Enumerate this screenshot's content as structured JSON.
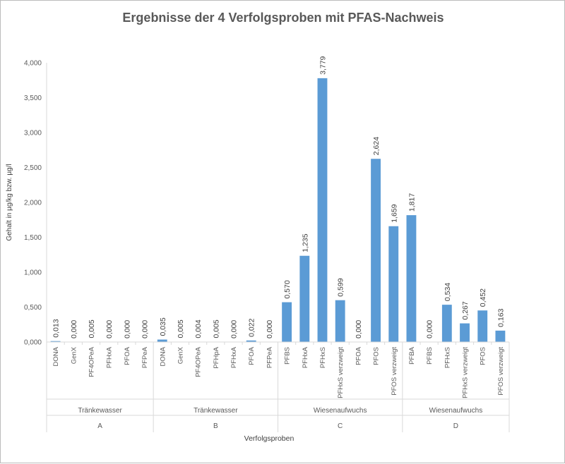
{
  "chart_data": {
    "type": "bar",
    "title": "Ergebnisse der 4 Verfolgsproben mit PFAS-Nachweis",
    "xlabel": "Verfolgsproben",
    "ylabel": "Gehalt in µg/kg bzw. µg/l",
    "ylim": [
      0,
      4.0
    ],
    "ytick_labels": [
      "0,000",
      "0,500",
      "1,000",
      "1,500",
      "2,000",
      "2,500",
      "3,000",
      "3,500",
      "4,000"
    ],
    "grid": false,
    "bar_color": "#5b9bd5",
    "groups": [
      {
        "name": "A",
        "matrix": "Tränkewasser",
        "categories": [
          "DONA",
          "GenX",
          "PF4OPeA",
          "PFHxA",
          "PFOA",
          "PFPeA"
        ],
        "values": [
          0.013,
          0.0,
          0.005,
          0.0,
          0.0,
          0.0
        ],
        "labels": [
          "0,013",
          "0,000",
          "0,005",
          "0,000",
          "0,000",
          "0,000"
        ]
      },
      {
        "name": "B",
        "matrix": "Tränkewasser",
        "categories": [
          "DONA",
          "GenX",
          "PF4OPeA",
          "PFHpA",
          "PFHxA",
          "PFOA",
          "PFPeA"
        ],
        "values": [
          0.035,
          0.005,
          0.004,
          0.005,
          0.0,
          0.022,
          0.0
        ],
        "labels": [
          "0,035",
          "0,005",
          "0,004",
          "0,005",
          "0,000",
          "0,022",
          "0,000"
        ]
      },
      {
        "name": "C",
        "matrix": "Wiesenaufwuchs",
        "categories": [
          "PFBS",
          "PFHxA",
          "PFHxS",
          "PFHxS verzweigt",
          "PFOA",
          "PFOS",
          "PFOS verzweigt"
        ],
        "values": [
          0.57,
          1.235,
          3.779,
          0.599,
          0.0,
          2.624,
          1.659
        ],
        "labels": [
          "0,570",
          "1,235",
          "3,779",
          "0,599",
          "0,000",
          "2,624",
          "1,659"
        ]
      },
      {
        "name": "D",
        "matrix": "Wiesenaufwuchs",
        "categories": [
          "PFBA",
          "PFBS",
          "PFHxS",
          "PFHxS verzweigt",
          "PFOS",
          "PFOS verzweigt"
        ],
        "values": [
          1.817,
          0.0,
          0.534,
          0.267,
          0.452,
          0.163
        ],
        "labels": [
          "1,817",
          "0,000",
          "0,534",
          "0,267",
          "0,452",
          "0,163"
        ]
      }
    ]
  }
}
